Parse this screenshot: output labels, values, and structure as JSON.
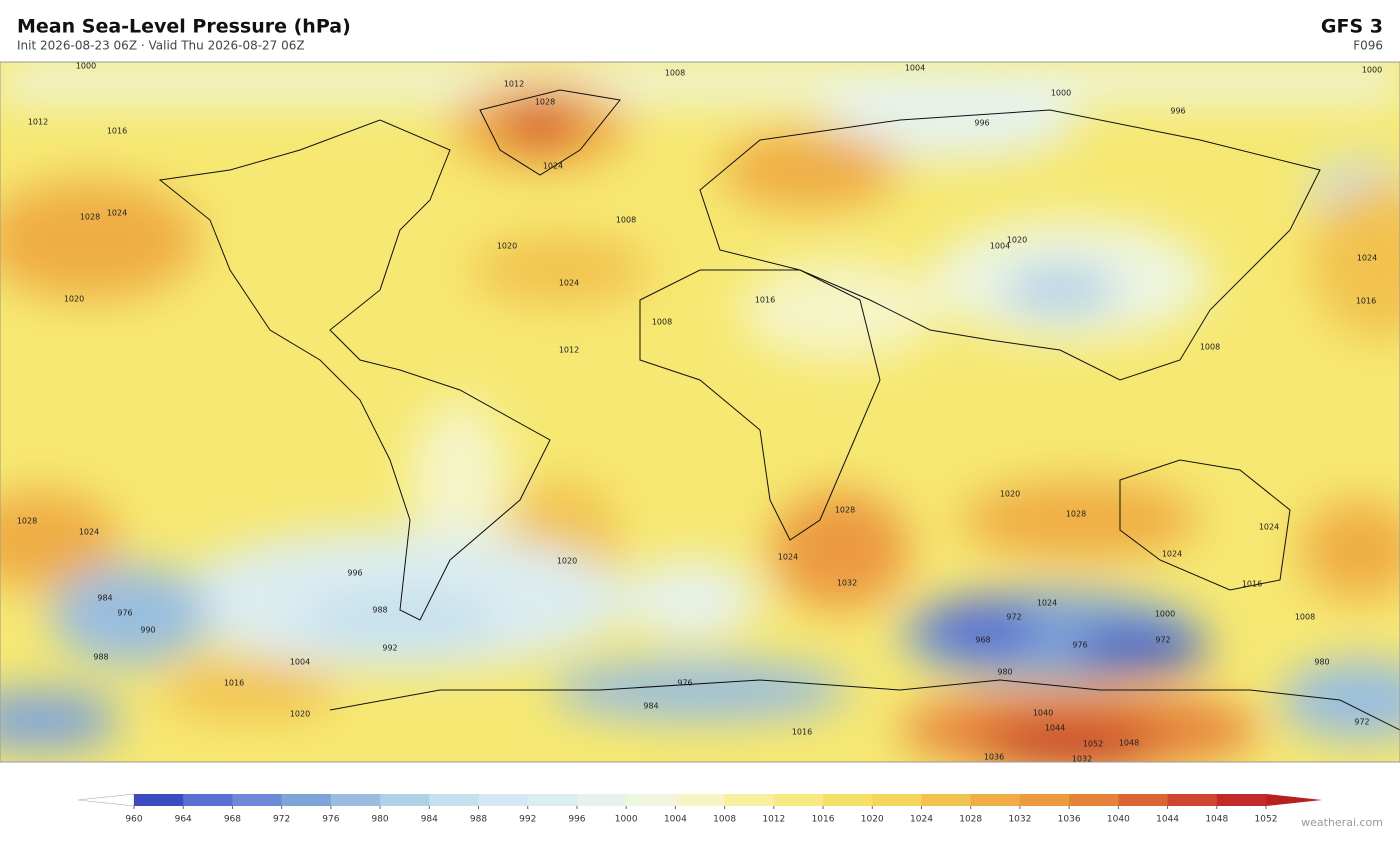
{
  "header": {
    "title": "Mean Sea-Level Pressure  (hPa)",
    "subtitle": "Init 2026-08-23 06Z  ·  Valid Thu 2026-08-27 06Z",
    "model": "GFS  3",
    "forecast_hour": "F096"
  },
  "map": {
    "contour_labels": [
      "1000",
      "1008",
      "1004",
      "1000",
      "1012",
      "1012",
      "1016",
      "1020",
      "1028",
      "1024",
      "1024",
      "1028",
      "1024",
      "1020",
      "1024",
      "1020",
      "1008",
      "1012",
      "1016",
      "1008",
      "1000",
      "996",
      "996",
      "1008",
      "1004",
      "1016",
      "1020",
      "1028",
      "1024",
      "1028",
      "1024",
      "1024",
      "1032",
      "1020",
      "1028",
      "1024",
      "1016",
      "1016",
      "996",
      "984",
      "976",
      "990",
      "988",
      "992",
      "988",
      "972",
      "968",
      "976",
      "972",
      "980",
      "976",
      "984",
      "1004",
      "1016",
      "1020",
      "1040",
      "1044",
      "1052",
      "1048",
      "1036",
      "1032",
      "980",
      "972",
      "1008",
      "1024",
      "1000"
    ]
  },
  "colorbar": {
    "ticks": [
      960,
      964,
      968,
      972,
      976,
      980,
      984,
      988,
      992,
      996,
      1000,
      1004,
      1008,
      1012,
      1016,
      1020,
      1024,
      1028,
      1032,
      1036,
      1040,
      1044,
      1048,
      1052
    ],
    "colors": [
      "#3b4cc0",
      "#5a70d2",
      "#6d8ad8",
      "#7fa4d8",
      "#98bde0",
      "#b0d0e8",
      "#c5e0ee",
      "#d3e8f0",
      "#dcedf0",
      "#e6f2ec",
      "#eef6e0",
      "#f5f5c8",
      "#f7f0a0",
      "#f7ea80",
      "#f6e06a",
      "#f5d45a",
      "#f2c250",
      "#efad45",
      "#ec9a40",
      "#e6823a",
      "#dd6434",
      "#d04530",
      "#c02a28"
    ],
    "under_color": "#ffffff",
    "over_color": "#b82020"
  },
  "footer": {
    "watermark": "weatherai.com"
  }
}
